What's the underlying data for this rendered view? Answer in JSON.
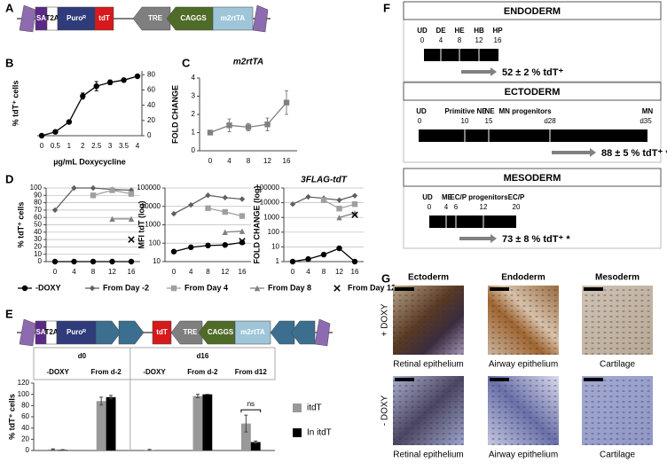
{
  "panel_labels": [
    "A",
    "B",
    "C",
    "D",
    "E",
    "F",
    "G"
  ],
  "construct_a": {
    "parts": [
      "SA",
      "T2A",
      "Puroᴿ",
      "tdT",
      "TRE",
      "CAGGS",
      "m2rtTA"
    ]
  },
  "construct_e": {
    "parts": [
      "SA",
      "T2A",
      "Puroᴿ",
      "tdT",
      "TRE",
      "CAGGS",
      "m2rtTA"
    ]
  },
  "chart_data": [
    {
      "type": "line",
      "categories": [
        "0",
        "0.5",
        "1",
        "2",
        "2.5",
        "3",
        "3.5",
        "4"
      ],
      "values": [
        0,
        5,
        18,
        52,
        65,
        70,
        73,
        78
      ],
      "errors": [
        0,
        1,
        2,
        4,
        6,
        3,
        2,
        2
      ],
      "color": "#000000",
      "marker": "circle",
      "ylim": [
        0,
        85
      ],
      "yticks": [
        0,
        20,
        40,
        60,
        80
      ],
      "y_axis_side": "right",
      "y_label": "% tdT⁺ cells",
      "x_label": "µg/mL Doxycycline"
    },
    {
      "type": "line",
      "title": "m2rtTA",
      "categories": [
        "0",
        "4",
        "8",
        "12",
        "16"
      ],
      "values": [
        1,
        1.4,
        1.3,
        1.45,
        2.65
      ],
      "errors": [
        0.05,
        0.35,
        0.2,
        0.35,
        0.65
      ],
      "color": "#808080",
      "marker": "square",
      "ylim": [
        0,
        4
      ],
      "yticks": [
        0,
        1,
        2,
        3,
        4
      ],
      "y_label": "FOLD CHANGE"
    },
    {
      "type": "line",
      "categories": [
        "0",
        "4",
        "8",
        "12",
        "16"
      ],
      "ylim": [
        0,
        100
      ],
      "yticks": [
        0,
        10,
        20,
        30,
        40,
        50,
        60,
        70,
        80,
        90,
        100
      ],
      "grid": true,
      "y_label": "% tdT⁺ cells",
      "series": [
        {
          "name": "-DOXY",
          "color": "#000000",
          "marker": "circle",
          "values": [
            0,
            0,
            0,
            0,
            0
          ]
        },
        {
          "name": "From Day -2",
          "color": "#606060",
          "marker": "diamond",
          "values": [
            70,
            100,
            100,
            98,
            97
          ]
        },
        {
          "name": "From Day 4",
          "color": "#a0a0a0",
          "marker": "square",
          "values": [
            null,
            null,
            90,
            97,
            92
          ]
        },
        {
          "name": "From Day 8",
          "color": "#808080",
          "marker": "triangle",
          "values": [
            null,
            null,
            null,
            58,
            58
          ]
        },
        {
          "name": "From Day 12",
          "color": "#000000",
          "marker": "x",
          "values": [
            null,
            null,
            null,
            null,
            30
          ]
        }
      ]
    },
    {
      "type": "line",
      "categories": [
        "0",
        "4",
        "8",
        "12",
        "16"
      ],
      "log_scale": true,
      "ylim": [
        10,
        100000
      ],
      "yticks": [
        10,
        100,
        1000,
        10000,
        100000
      ],
      "grid": true,
      "y_label": "MFI tdT (log)",
      "series": [
        {
          "color": "#000000",
          "marker": "circle",
          "values": [
            35,
            60,
            75,
            80,
            110
          ]
        },
        {
          "color": "#606060",
          "marker": "diamond",
          "values": [
            4000,
            12000,
            40000,
            30000,
            25000
          ]
        },
        {
          "color": "#a0a0a0",
          "marker": "square",
          "values": [
            null,
            null,
            8000,
            5000,
            3000
          ]
        },
        {
          "color": "#808080",
          "marker": "triangle",
          "values": [
            null,
            null,
            null,
            400,
            450
          ]
        },
        {
          "color": "#000000",
          "marker": "x",
          "values": [
            null,
            null,
            null,
            null,
            130
          ]
        }
      ]
    },
    {
      "type": "line",
      "title": "3FLAG-tdT",
      "categories": [
        "0",
        "4",
        "8",
        "12",
        "16"
      ],
      "log_scale": true,
      "ylim": [
        1,
        100000
      ],
      "yticks": [
        1,
        10,
        100,
        1000,
        10000,
        100000
      ],
      "grid": true,
      "y_label": "FOLD CHANGE (log)",
      "series": [
        {
          "color": "#000000",
          "marker": "circle",
          "values": [
            1,
            1.5,
            3,
            8,
            1
          ]
        },
        {
          "color": "#606060",
          "marker": "diamond",
          "values": [
            8000,
            25000,
            20000,
            15000,
            30000
          ]
        },
        {
          "color": "#a0a0a0",
          "marker": "square",
          "values": [
            null,
            null,
            15000,
            4000,
            8000
          ]
        },
        {
          "color": "#808080",
          "marker": "triangle",
          "values": [
            null,
            null,
            null,
            1000,
            2000
          ]
        },
        {
          "color": "#000000",
          "marker": "x",
          "values": [
            null,
            null,
            null,
            null,
            1500
          ]
        }
      ]
    },
    {
      "type": "bar",
      "groups": [
        "d0",
        "d16"
      ],
      "categories": [
        "-DOXY",
        "From d-2",
        "-DOXY",
        "From d-2",
        "From d12"
      ],
      "series": [
        {
          "name": "itdT",
          "color": "#999999",
          "values": [
            2,
            88,
            1,
            97,
            48
          ],
          "errors": [
            1,
            7,
            1,
            3,
            15
          ]
        },
        {
          "name": "In itdT",
          "color": "#000000",
          "values": [
            1,
            95,
            0,
            100,
            15
          ],
          "errors": [
            0.5,
            3,
            0,
            0,
            2
          ]
        }
      ],
      "ylim": [
        0,
        120
      ],
      "yticks": [
        0,
        20,
        40,
        60,
        80,
        100,
        120
      ],
      "y_label": "% tdT⁺ cells",
      "annotation": "ns"
    }
  ],
  "differentiation": [
    {
      "title": "ENDODERM",
      "stages": [
        "UD",
        "DE",
        "HE",
        "HB",
        "HP"
      ],
      "days": [
        "0",
        "4",
        "8",
        "12",
        "16"
      ],
      "result": "52 ± 2 % tdT⁺"
    },
    {
      "title": "ECTODERM",
      "stages": [
        "UD",
        "Primitive NE",
        "NE",
        "MN progenitors",
        "MN"
      ],
      "days": [
        "0",
        "10",
        "15",
        "d28",
        "d35"
      ],
      "result": "88 ± 5 % tdT⁺ *"
    },
    {
      "title": "MESODERM",
      "stages": [
        "UD",
        "ME",
        "EC/P progenitors",
        "EC/P"
      ],
      "days": [
        "0",
        "4",
        "6",
        "12",
        "20"
      ],
      "result": "73 ± 8 % tdT⁺ *"
    }
  ],
  "staining": {
    "columns": [
      "Ectoderm",
      "Endoderm",
      "Mesoderm"
    ],
    "rows": [
      "+ DOXY",
      "- DOXY"
    ],
    "captions": [
      [
        "Retinal epithelium",
        "Airway epithelium",
        "Cartilage"
      ],
      [
        "Retinal epithelium",
        "Airway epithelium",
        "Cartilage"
      ]
    ]
  }
}
